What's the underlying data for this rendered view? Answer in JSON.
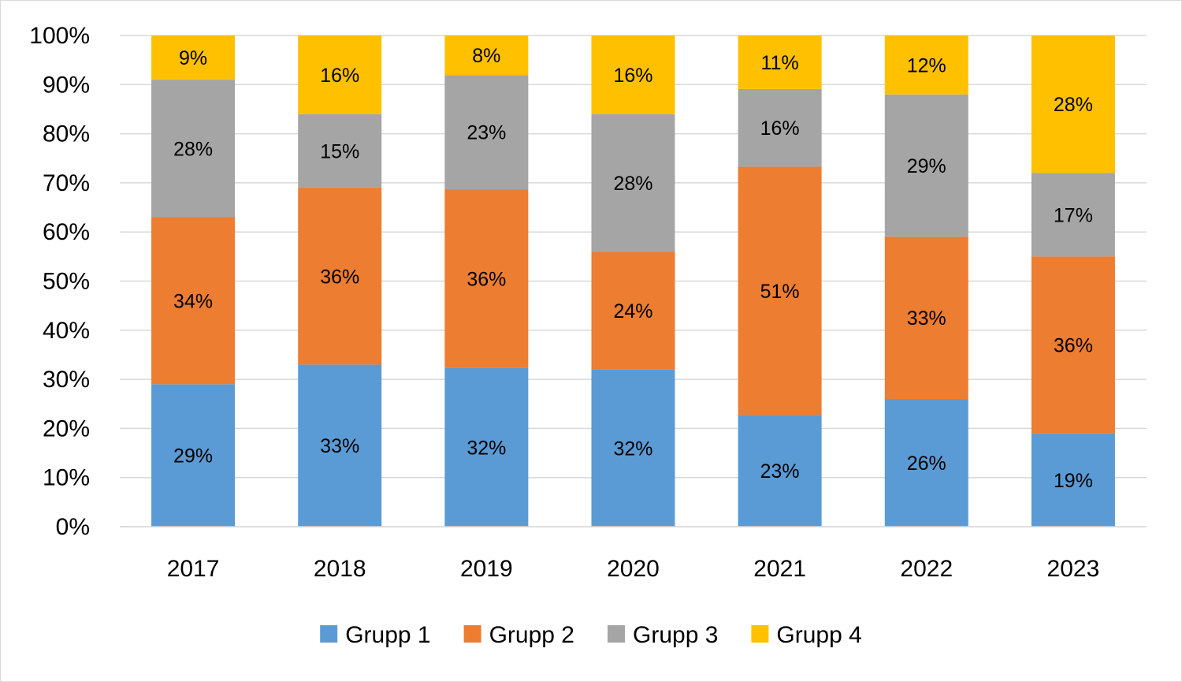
{
  "chart_data": {
    "type": "bar",
    "stacked": true,
    "percent_stacked": true,
    "categories": [
      "2017",
      "2018",
      "2019",
      "2020",
      "2021",
      "2022",
      "2023"
    ],
    "series": [
      {
        "name": "Grupp 1",
        "color": "#5B9BD5",
        "values": [
          29,
          33,
          32,
          32,
          23,
          26,
          19
        ],
        "labels": [
          "29%",
          "33%",
          "32%",
          "32%",
          "23%",
          "26%",
          "19%"
        ]
      },
      {
        "name": "Grupp 2",
        "color": "#ED7D31",
        "values": [
          34,
          36,
          36,
          24,
          51,
          33,
          36
        ],
        "labels": [
          "34%",
          "36%",
          "36%",
          "24%",
          "51%",
          "33%",
          "36%"
        ]
      },
      {
        "name": "Grupp 3",
        "color": "#A5A5A5",
        "values": [
          28,
          15,
          23,
          28,
          16,
          29,
          17
        ],
        "labels": [
          "28%",
          "15%",
          "23%",
          "28%",
          "16%",
          "29%",
          "17%"
        ]
      },
      {
        "name": "Grupp 4",
        "color": "#FFC000",
        "values": [
          9,
          16,
          8,
          16,
          11,
          12,
          28
        ],
        "labels": [
          "9%",
          "16%",
          "8%",
          "16%",
          "11%",
          "12%",
          "28%"
        ]
      }
    ],
    "y_ticks": [
      "0%",
      "10%",
      "20%",
      "30%",
      "40%",
      "50%",
      "60%",
      "70%",
      "80%",
      "90%",
      "100%"
    ],
    "ylim": [
      0,
      100
    ],
    "grid": true,
    "legend_position": "bottom",
    "title": "",
    "xlabel": "",
    "ylabel": ""
  }
}
